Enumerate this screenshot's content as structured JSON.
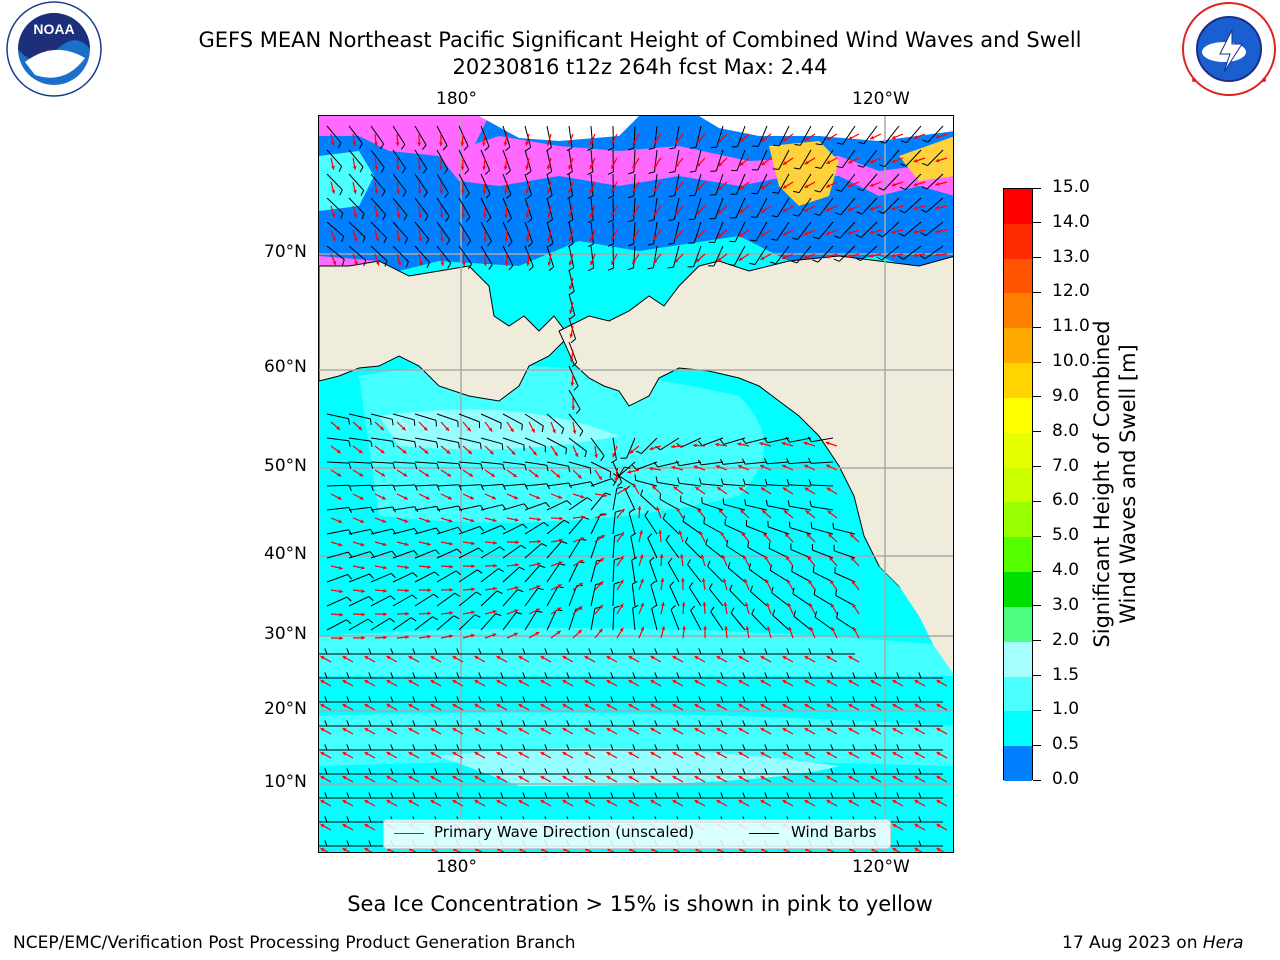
{
  "header": {
    "title_line1": "GEFS MEAN Northeast Pacific Significant Height of Combined Wind Waves and Swell",
    "title_line2": "20230816 t12z 264h fcst   Max: 2.44"
  },
  "logos": {
    "left": "NOAA",
    "right": "NATIONAL WEATHER SERVICE"
  },
  "map": {
    "top_lon_labels": [
      "180°",
      "120°W"
    ],
    "bottom_lon_labels": [
      "180°",
      "120°W"
    ],
    "lat_labels": [
      "70°N",
      "60°N",
      "50°N",
      "40°N",
      "30°N",
      "20°N",
      "10°N"
    ],
    "colors": {
      "land": "#efecdb",
      "ocean_low": "#00ffff",
      "ocean_mid": "#4cffff",
      "ice": "#ff69ff",
      "ice_high": "#ffd23c",
      "wave_arrow": "#ff0000",
      "wind_barb": "#000000"
    }
  },
  "legend": {
    "wave_label": "Primary Wave Direction (unscaled)",
    "wind_label": "Wind Barbs"
  },
  "colorbar": {
    "label_line1": "Significant Height of Combined",
    "label_line2": "Wind Waves and Swell [m]",
    "ticks": [
      "15.0",
      "14.0",
      "13.0",
      "12.0",
      "11.0",
      "10.0",
      "9.0",
      "8.0",
      "7.0",
      "6.0",
      "5.0",
      "4.0",
      "3.0",
      "2.0",
      "1.5",
      "1.0",
      "0.5",
      "0.0"
    ],
    "colors": [
      "#ff0000",
      "#ff2a00",
      "#ff5500",
      "#ff8000",
      "#ffaa00",
      "#ffd400",
      "#ffff00",
      "#e5ff00",
      "#cbff00",
      "#98ff00",
      "#55ff00",
      "#00e000",
      "#4dff7e",
      "#a6ffff",
      "#4cffff",
      "#00ffff",
      "#0080ff",
      "#0000ff"
    ]
  },
  "note": "Sea Ice Concentration > 15% is shown in pink to yellow",
  "footer": {
    "left": "NCEP/EMC/Verification Post Processing Product Generation Branch",
    "date": "17 Aug 2023 on ",
    "machine": "Hera"
  }
}
